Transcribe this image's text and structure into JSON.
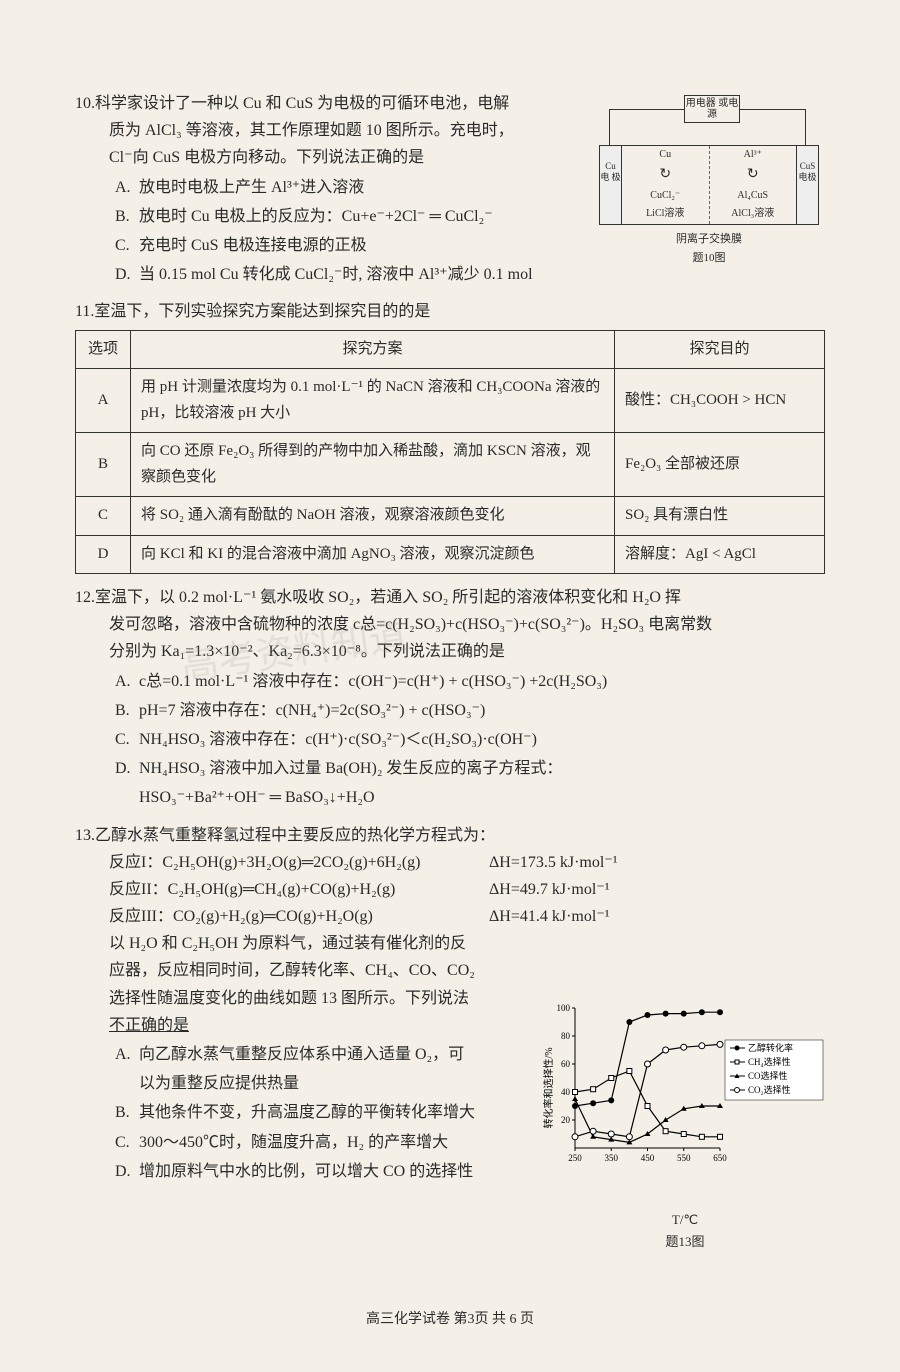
{
  "q10": {
    "num": "10.",
    "text_l1": "科学家设计了一种以 Cu 和 CuS 为电极的可循环电池，电解",
    "text_l2": "质为 AlCl₃ 等溶液，其工作原理如题 10 图所示。充电时，",
    "text_l3": "Cl⁻向 CuS 电极方向移动。下列说法正确的是",
    "opts": {
      "A": "放电时电极上产生 Al³⁺进入溶液",
      "B": "放电时 Cu 电极上的反应为：Cu+e⁻+2Cl⁻ ═ CuCl₂⁻",
      "C": "充电时 CuS 电极连接电源的正极",
      "D": "当 0.15 mol Cu 转化成 CuCl₂⁻时, 溶液中 Al³⁺减少 0.1 mol"
    },
    "diagram": {
      "top_box": "用电器\n或电源",
      "electrode_l": "Cu\n电\n极",
      "electrode_r": "CuS\n电极",
      "chamber_l_top": "Cu",
      "chamber_l_bot": "CuCl₂⁻",
      "chamber_r_top": "Al³⁺",
      "chamber_r_bot": "Al₄CuS",
      "sol_l": "LiCl溶液",
      "sol_r": "AlCl₃溶液",
      "membrane": "阴离子交换膜",
      "caption": "题10图"
    }
  },
  "q11": {
    "num": "11.",
    "text": "室温下，下列实验探究方案能达到探究目的的是",
    "headers": [
      "选项",
      "探究方案",
      "探究目的"
    ],
    "rows": [
      {
        "opt": "A",
        "plan": "用 pH 计测量浓度均为 0.1 mol·L⁻¹ 的 NaCN 溶液和 CH₃COONa 溶液的 pH，比较溶液 pH 大小",
        "goal": "酸性：CH₃COOH > HCN"
      },
      {
        "opt": "B",
        "plan": "向 CO 还原 Fe₂O₃ 所得到的产物中加入稀盐酸，滴加 KSCN 溶液，观察颜色变化",
        "goal": "Fe₂O₃ 全部被还原"
      },
      {
        "opt": "C",
        "plan": "将 SO₂ 通入滴有酚酞的 NaOH 溶液，观察溶液颜色变化",
        "goal": "SO₂ 具有漂白性"
      },
      {
        "opt": "D",
        "plan": "向 KCl 和 KI 的混合溶液中滴加 AgNO₃ 溶液，观察沉淀颜色",
        "goal": "溶解度：AgI < AgCl"
      }
    ]
  },
  "q12": {
    "num": "12.",
    "text_l1": "室温下，以 0.2 mol·L⁻¹ 氨水吸收 SO₂，若通入 SO₂ 所引起的溶液体积变化和 H₂O 挥",
    "text_l2": "发可忽略，溶液中含硫物种的浓度 c总=c(H₂SO₃)+c(HSO₃⁻)+c(SO₃²⁻)。H₂SO₃ 电离常数",
    "text_l3": "分别为 Ka₁=1.3×10⁻²、Ka₂=6.3×10⁻⁸。下列说法正确的是",
    "opts": {
      "A": "c总=0.1 mol·L⁻¹ 溶液中存在：c(OH⁻)=c(H⁺) + c(HSO₃⁻) +2c(H₂SO₃)",
      "B": "pH=7 溶液中存在：c(NH₄⁺)=2c(SO₃²⁻) + c(HSO₃⁻)",
      "C": "NH₄HSO₃ 溶液中存在：c(H⁺)·c(SO₃²⁻)＜c(H₂SO₃)·c(OH⁻)",
      "D1": "NH₄HSO₃ 溶液中加入过量 Ba(OH)₂ 发生反应的离子方程式：",
      "D2": "HSO₃⁻+Ba²⁺+OH⁻ ═ BaSO₃↓+H₂O"
    }
  },
  "q13": {
    "num": "13.",
    "text_l1": "乙醇水蒸气重整释氢过程中主要反应的热化学方程式为：",
    "reactions": [
      {
        "label": "反应I：",
        "eq": "C₂H₅OH(g)+3H₂O(g)═2CO₂(g)+6H₂(g)",
        "dh": "ΔH=173.5 kJ·mol⁻¹"
      },
      {
        "label": "反应II：",
        "eq": "C₂H₅OH(g)═CH₄(g)+CO(g)+H₂(g)",
        "dh": "ΔH=49.7 kJ·mol⁻¹"
      },
      {
        "label": "反应III：",
        "eq": "CO₂(g)+H₂(g)═CO(g)+H₂O(g)",
        "dh": "ΔH=41.4 kJ·mol⁻¹"
      }
    ],
    "text_l2": "以 H₂O 和 C₂H₅OH 为原料气，通过装有催化剂的反",
    "text_l3": "应器，反应相同时间，乙醇转化率、CH₄、CO、CO₂",
    "text_l4": "选择性随温度变化的曲线如题 13 图所示。下列说法",
    "text_l5": "不正确的是",
    "opts": {
      "A1": "向乙醇水蒸气重整反应体系中通入适量 O₂，可",
      "A2": "以为重整反应提供热量",
      "B": "其他条件不变，升高温度乙醇的平衡转化率增大",
      "C": "300～450℃时，随温度升高，H₂ 的产率增大",
      "D": "增加原料气中水的比例，可以增大 CO 的选择性"
    },
    "chart": {
      "ylabel": "转化率和选择性/%",
      "xlabel": "T/℃",
      "caption": "题13图",
      "x_ticks": [
        250,
        350,
        450,
        550,
        650
      ],
      "y_ticks": [
        20,
        40,
        60,
        80,
        100
      ],
      "legend": [
        "乙醇转化率",
        "CH₄选择性",
        "CO选择性",
        "CO₂选择性"
      ],
      "series": {
        "ethanol": {
          "color": "#000",
          "marker": "fill-circle",
          "data": [
            [
              250,
              30
            ],
            [
              300,
              32
            ],
            [
              350,
              34
            ],
            [
              400,
              90
            ],
            [
              450,
              95
            ],
            [
              500,
              96
            ],
            [
              550,
              96
            ],
            [
              600,
              97
            ],
            [
              650,
              97
            ]
          ]
        },
        "ch4": {
          "color": "#000",
          "marker": "square",
          "data": [
            [
              250,
              40
            ],
            [
              300,
              42
            ],
            [
              350,
              50
            ],
            [
              400,
              55
            ],
            [
              450,
              30
            ],
            [
              500,
              12
            ],
            [
              550,
              10
            ],
            [
              600,
              8
            ],
            [
              650,
              8
            ]
          ]
        },
        "co": {
          "color": "#000",
          "marker": "fill-triangle",
          "data": [
            [
              250,
              35
            ],
            [
              300,
              8
            ],
            [
              350,
              6
            ],
            [
              400,
              4
            ],
            [
              450,
              10
            ],
            [
              500,
              20
            ],
            [
              550,
              28
            ],
            [
              600,
              30
            ],
            [
              650,
              30
            ]
          ]
        },
        "co2": {
          "color": "#000",
          "marker": "circle",
          "data": [
            [
              250,
              8
            ],
            [
              300,
              12
            ],
            [
              350,
              10
            ],
            [
              400,
              8
            ],
            [
              450,
              60
            ],
            [
              500,
              70
            ],
            [
              550,
              72
            ],
            [
              600,
              73
            ],
            [
              650,
              74
            ]
          ]
        }
      }
    }
  },
  "footer": "高三化学试卷  第3页 共 6 页",
  "watermark": "高考资料知道"
}
